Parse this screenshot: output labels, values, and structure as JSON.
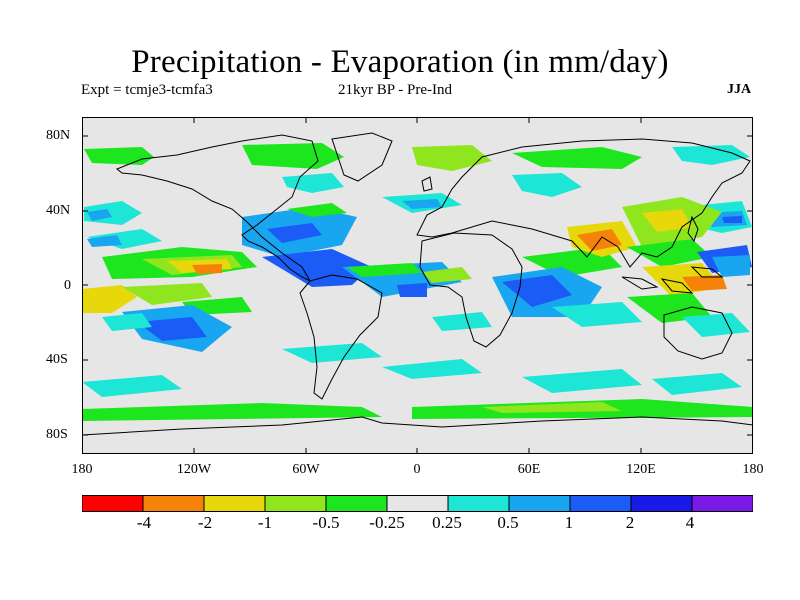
{
  "header": {
    "title": "Precipitation - Evaporation (in mm/day)",
    "left": "Expt = tcmje3-tcmfa3",
    "center": "21kyr BP - Pre-Ind",
    "right": "JJA"
  },
  "axes": {
    "y_ticks": [
      "80N",
      "40N",
      "0",
      "40S",
      "80S"
    ],
    "x_ticks": [
      "180",
      "120W",
      "60W",
      "0",
      "60E",
      "120E",
      "180"
    ]
  },
  "colorbar": {
    "colors": [
      "#ff0000",
      "#f5830a",
      "#e6d80a",
      "#8fe61e",
      "#1ee61e",
      "#e6e6e6",
      "#1ee6d6",
      "#19a6f0",
      "#1a5cf5",
      "#1a1ae6",
      "#7a1ae6"
    ],
    "labels": [
      "-4",
      "-2",
      "-1",
      "-0.5",
      "-0.25",
      "0.25",
      "0.5",
      "1",
      "2",
      "4"
    ]
  },
  "map": {
    "background": "#e6e6e6",
    "projection": "cylindrical-equidistant",
    "lon_range": [
      -180,
      180
    ],
    "lat_range": [
      -90,
      90
    ]
  }
}
